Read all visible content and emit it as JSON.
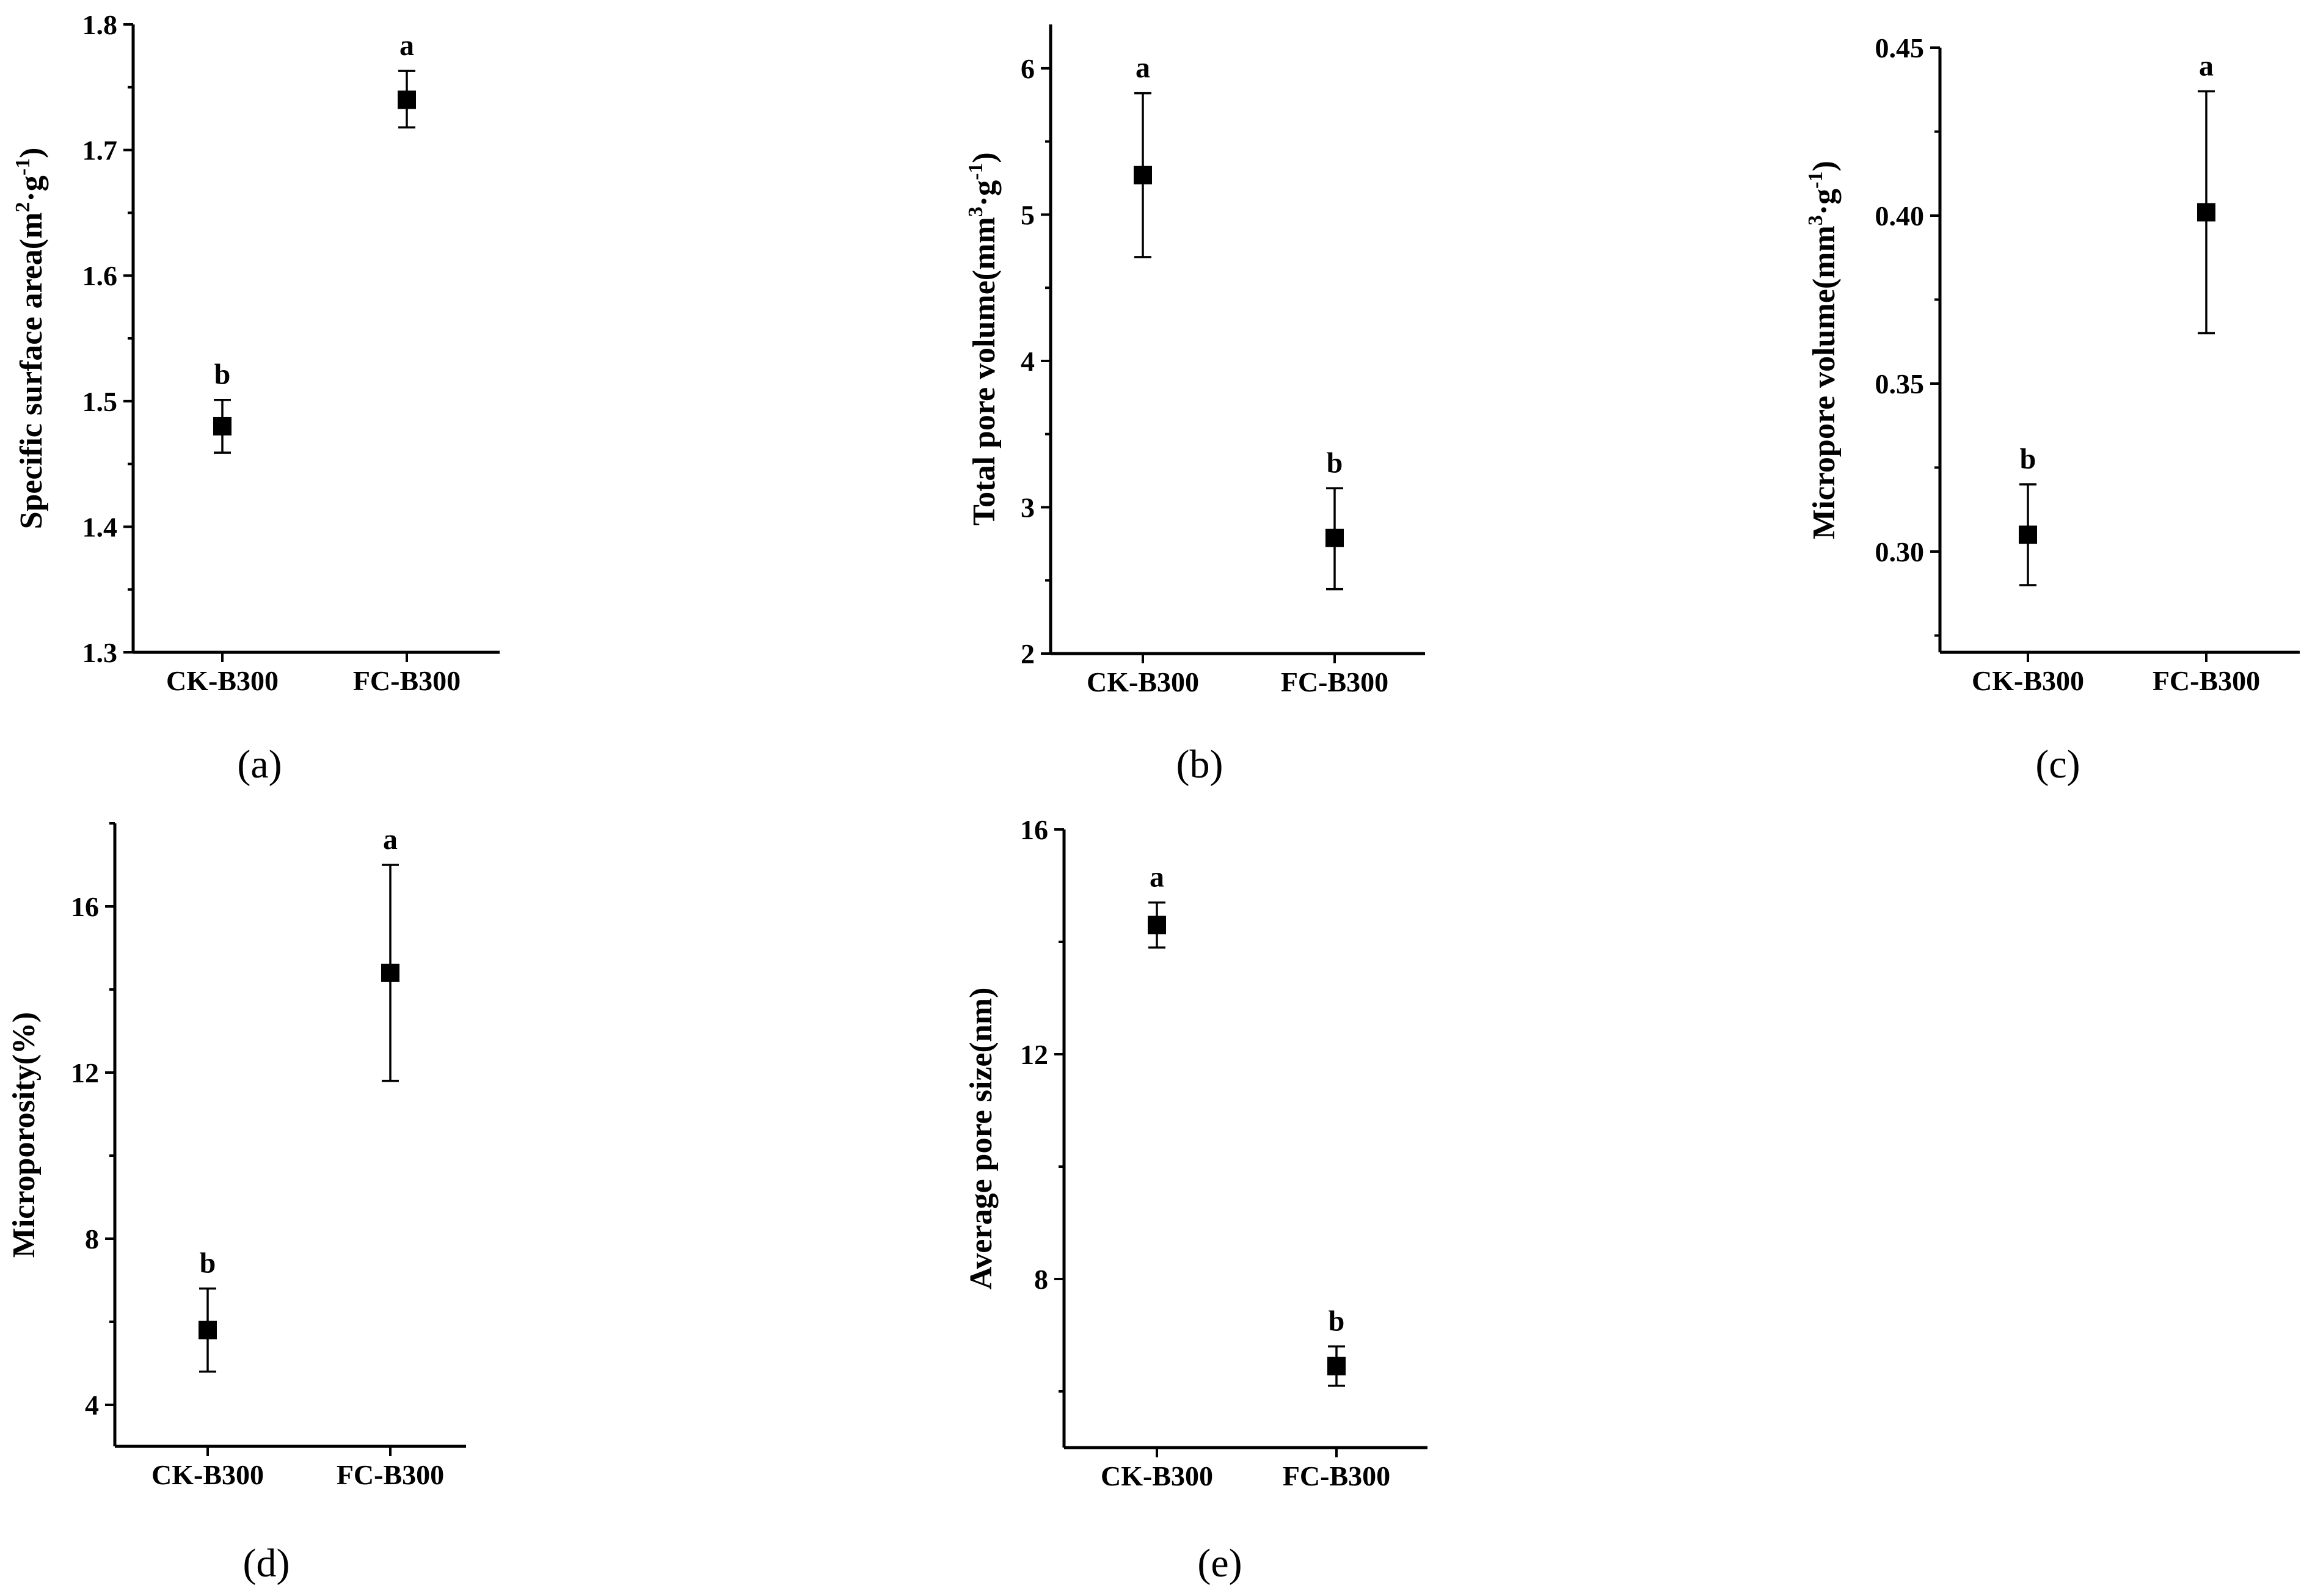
{
  "chart_data": [
    {
      "panel": "(a)",
      "type": "scatter",
      "ylabel": "Specific surface area(m2·g-1)",
      "ylabel_parts": [
        "Specific surface area(m",
        "2",
        "·g",
        "-1",
        ")"
      ],
      "ylim": [
        1.3,
        1.8
      ],
      "yticks": [
        "1.3",
        "1.4",
        "1.5",
        "1.6",
        "1.7",
        "1.8"
      ],
      "categories": [
        "CK-B300",
        "FC-B300"
      ],
      "values": [
        1.48,
        1.74
      ],
      "err_low": [
        1.459,
        1.718
      ],
      "err_high": [
        1.501,
        1.763
      ],
      "letters": [
        "b",
        "a"
      ]
    },
    {
      "panel": "(b)",
      "type": "scatter",
      "ylabel": "Total pore volume(mm3·g-1)",
      "ylabel_parts": [
        "Total pore volume(mm",
        "3",
        "·g",
        "-1",
        ")"
      ],
      "ylim": [
        2,
        6.3
      ],
      "yticks": [
        "2",
        "3",
        "4",
        "5",
        "6"
      ],
      "categories": [
        "CK-B300",
        "FC-B300"
      ],
      "values": [
        5.27,
        2.79
      ],
      "err_low": [
        4.71,
        2.44
      ],
      "err_high": [
        5.83,
        3.13
      ],
      "letters": [
        "a",
        "b"
      ]
    },
    {
      "panel": "(c)",
      "type": "scatter",
      "ylabel": "Micropore volume(mm3·g-1)",
      "ylabel_parts": [
        "Micropore volume(mm",
        "3",
        "·g",
        "-1",
        ")"
      ],
      "ylim": [
        0.27,
        0.45
      ],
      "yticks": [
        "0.30",
        "0.35",
        "0.40",
        "0.45"
      ],
      "categories": [
        "CK-B300",
        "FC-B300"
      ],
      "values": [
        0.305,
        0.401
      ],
      "err_low": [
        0.29,
        0.365
      ],
      "err_high": [
        0.32,
        0.437
      ],
      "letters": [
        "b",
        "a"
      ]
    },
    {
      "panel": "(d)",
      "type": "scatter",
      "ylabel": "Microporosity(%)",
      "ylabel_parts": [
        "Microporosity(%)"
      ],
      "ylim": [
        3,
        18
      ],
      "yticks": [
        "4",
        "8",
        "12",
        "16"
      ],
      "categories": [
        "CK-B300",
        "FC-B300"
      ],
      "values": [
        5.8,
        14.4
      ],
      "err_low": [
        4.8,
        11.8
      ],
      "err_high": [
        6.8,
        17.0
      ],
      "letters": [
        "b",
        "a"
      ]
    },
    {
      "panel": "(e)",
      "type": "scatter",
      "ylabel": "Average pore size(nm)",
      "ylabel_parts": [
        "Average pore size(nm)"
      ],
      "ylim": [
        5,
        16
      ],
      "yticks": [
        "8",
        "12",
        "16"
      ],
      "categories": [
        "CK-B300",
        "FC-B300"
      ],
      "values": [
        14.3,
        6.45
      ],
      "err_low": [
        13.9,
        6.1
      ],
      "err_high": [
        14.7,
        6.8
      ],
      "letters": [
        "a",
        "b"
      ]
    }
  ]
}
